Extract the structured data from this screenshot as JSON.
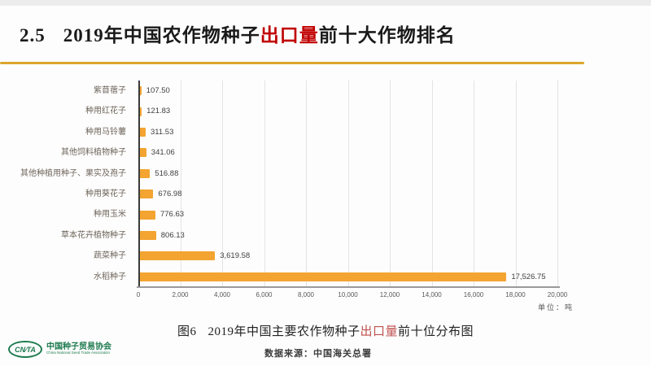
{
  "header": {
    "section_number": "2.5",
    "title_part1": "2019年中国农作物种子",
    "title_highlight": "出口量",
    "title_part2": "前十大作物排名",
    "highlight_color": "#c00000",
    "rule_color": "#dca62d"
  },
  "chart_data": {
    "type": "bar",
    "orientation": "horizontal",
    "title": "",
    "xlabel": "",
    "ylabel": "",
    "unit_label": "单位：吨",
    "categories": [
      "紫苜蓿子",
      "种用红花子",
      "种用马铃薯",
      "其他饲料植物种子",
      "其他种植用种子、果实及孢子",
      "种用葵花子",
      "种用玉米",
      "草本花卉植物种子",
      "蔬菜种子",
      "水稻种子"
    ],
    "values": [
      107.5,
      121.83,
      311.53,
      341.06,
      516.88,
      676.98,
      776.63,
      806.13,
      3619.58,
      17526.75
    ],
    "value_labels": [
      "107.50",
      "121.83",
      "311.53",
      "341.06",
      "516.88",
      "676.98",
      "776.63",
      "806.13",
      "3,619.58",
      "17,526.75"
    ],
    "xlim": [
      0,
      20000
    ],
    "x_ticks": [
      0,
      2000,
      4000,
      6000,
      8000,
      10000,
      12000,
      14000,
      16000,
      18000,
      20000
    ],
    "x_tick_labels": [
      "0",
      "2,000",
      "4,000",
      "6,000",
      "8,000",
      "10,000",
      "12,000",
      "14,000",
      "16,000",
      "18,000",
      "20,000"
    ],
    "grid": true,
    "legend": false,
    "bar_color": "#f3a431"
  },
  "caption": {
    "figure_prefix": "图6",
    "text_part1": "2019年中国主要农作物种子",
    "text_highlight": "出口量",
    "text_part2": "前十位分布图",
    "highlight_color": "#c0504d"
  },
  "footer": {
    "logo_abbr": "CN∕TA",
    "org_name_cn": "中国种子贸易协会",
    "org_name_en": "China National Seed Trade Association",
    "logo_color": "#1e7b4f",
    "data_source": "数据来源：中国海关总署"
  }
}
